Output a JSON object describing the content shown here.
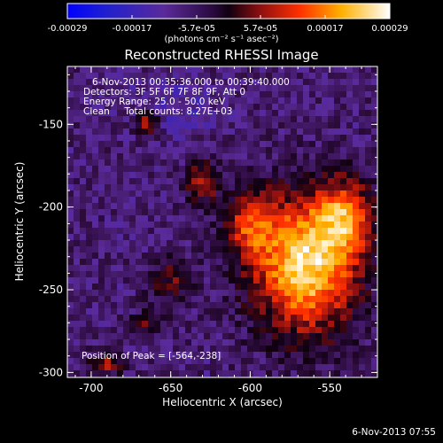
{
  "colorbar": {
    "tick_labels": [
      "-0.00029",
      "-0.00017",
      "-5.7e-05",
      "5.7e-05",
      "0.00017",
      "0.00029"
    ],
    "unit_label": "(photons cm⁻² s⁻¹ asec⁻²)"
  },
  "chart_data": {
    "type": "heatmap",
    "title": "Reconstructed RHESSI Image",
    "xlabel": "Heliocentric X (arcsec)",
    "ylabel": "Heliocentric Y (arcsec)",
    "xlim": [
      -715,
      -520
    ],
    "ylim": [
      -303,
      -115
    ],
    "x_ticks": [
      -700,
      -650,
      -600,
      -550
    ],
    "y_ticks": [
      -150,
      -200,
      -250,
      -300
    ],
    "x_tick_labels": [
      "-700",
      "-650",
      "-600",
      "-550"
    ],
    "y_tick_labels": [
      "-150",
      "-200",
      "-250",
      "-300"
    ],
    "value_range": [
      -0.00029,
      0.00029
    ],
    "colormap": "blue-purple-red-yellow-white",
    "peak": {
      "x": -564,
      "y": -238
    }
  },
  "info": {
    "time_range": "6-Nov-2013 00:35:36.000 to 00:39:40.000",
    "detectors": "Detectors: 3F 5F 6F 7F 8F 9F, Att 0",
    "energy": "Energy Range: 25.0 - 50.0 keV",
    "clean": "Clean     Total counts: 8.27E+03",
    "peak_text": "Position of Peak = [-564,-238]"
  },
  "timestamp": "6-Nov-2013 07:55"
}
